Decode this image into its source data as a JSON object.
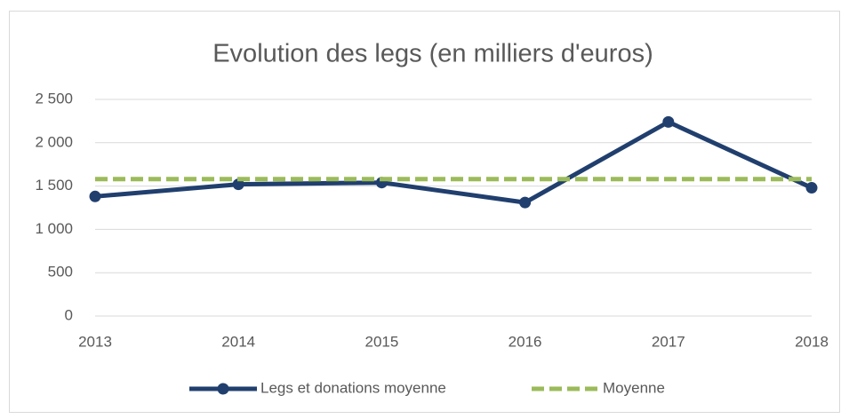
{
  "chart_data": {
    "type": "line",
    "title": "Evolution des legs (en milliers d'euros)",
    "categories": [
      "2013",
      "2014",
      "2015",
      "2016",
      "2017",
      "2018"
    ],
    "series": [
      {
        "name": "Legs et donations moyenne",
        "color": "#203f6e",
        "values": [
          1380,
          1520,
          1540,
          1310,
          2240,
          1480
        ]
      },
      {
        "name": "Moyenne",
        "color": "#9bbb59",
        "dashed": true,
        "values": [
          1580,
          1580,
          1580,
          1580,
          1580,
          1580
        ]
      }
    ],
    "ylim": [
      0,
      2500
    ],
    "yticks": [
      0,
      500,
      {
        "value": 1000,
        "label": "1 000"
      },
      {
        "value": 1500,
        "label": "1 500"
      },
      {
        "value": 2000,
        "label": "2 000"
      },
      {
        "value": 2500,
        "label": "2 500"
      }
    ],
    "grid": true,
    "legend": "bottom"
  }
}
